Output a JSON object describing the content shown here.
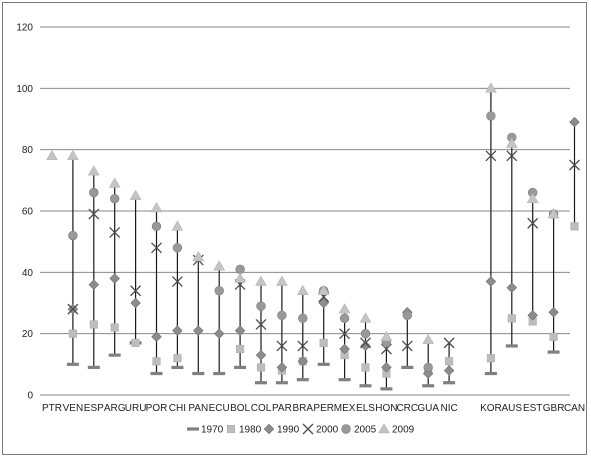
{
  "chart_data": {
    "type": "scatter",
    "title": "",
    "xlabel": "",
    "ylabel": "",
    "ylim": [
      0,
      120
    ],
    "yticks": [
      0,
      20,
      40,
      60,
      80,
      100,
      120
    ],
    "grid": "horizontal",
    "legend_position": "bottom",
    "categories": [
      "PTR",
      "VEN",
      "ESP",
      "ARG",
      "URU",
      "POR",
      "CHI",
      "PAN",
      "ECU",
      "BOL",
      "COL",
      "PAR",
      "BRA",
      "PER",
      "MEX",
      "ELS",
      "HON",
      "CRC",
      "GUA",
      "NIC",
      "",
      "KOR",
      "AUS",
      "EST",
      "GBR",
      "CAN"
    ],
    "series": [
      {
        "name": "1970",
        "marker": "dash",
        "color": "#808080",
        "values": [
          null,
          10,
          9,
          13,
          17,
          7,
          9,
          7,
          7,
          9,
          4,
          4,
          5,
          10,
          5,
          3,
          2,
          9,
          3,
          4,
          null,
          7,
          16,
          null,
          14,
          null
        ]
      },
      {
        "name": "1980",
        "marker": "square",
        "color": "#bdbdbd",
        "values": [
          null,
          20,
          23,
          22,
          17,
          11,
          12,
          null,
          null,
          15,
          9,
          8,
          11,
          17,
          13,
          9,
          7,
          null,
          8,
          11,
          null,
          12,
          25,
          24,
          19,
          55
        ]
      },
      {
        "name": "1990",
        "marker": "diamond",
        "color": "#8c8c8c",
        "values": [
          null,
          28,
          36,
          38,
          30,
          19,
          21,
          21,
          20,
          21,
          13,
          9,
          11,
          30,
          15,
          16,
          9,
          27,
          7,
          8,
          null,
          37,
          35,
          26,
          27,
          89
        ]
      },
      {
        "name": "2000",
        "marker": "x",
        "color": "#4d4d4d",
        "values": [
          null,
          28,
          59,
          53,
          34,
          48,
          37,
          44,
          null,
          36,
          23,
          16,
          16,
          32,
          20,
          17,
          15,
          16,
          null,
          17,
          null,
          78,
          78,
          56,
          null,
          75
        ]
      },
      {
        "name": "2005",
        "marker": "circle",
        "color": "#999999",
        "values": [
          null,
          52,
          66,
          64,
          null,
          55,
          48,
          null,
          34,
          41,
          29,
          26,
          25,
          34,
          25,
          20,
          17,
          26,
          9,
          null,
          null,
          91,
          84,
          66,
          59,
          null
        ]
      },
      {
        "name": "2009",
        "marker": "triangle",
        "color": "#c4c4c4",
        "values": [
          78,
          78,
          73,
          69,
          65,
          61,
          55,
          45,
          42,
          38,
          37,
          37,
          34,
          34,
          28,
          25,
          19,
          null,
          18,
          null,
          null,
          100,
          82,
          64,
          59,
          null
        ]
      }
    ]
  }
}
